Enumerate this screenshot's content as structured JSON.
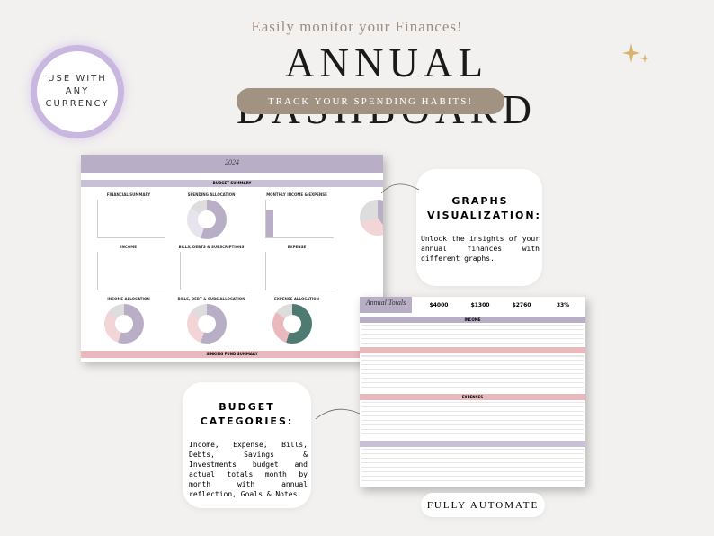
{
  "header": {
    "tagline": "Easily monitor your Finances!",
    "title": "ANNUAL DASHBOARD",
    "button": "TRACK YOUR SPENDING HABITS!"
  },
  "badge": {
    "lines": [
      "USE WITH",
      "ANY",
      "CURRENCY"
    ]
  },
  "dashboard": {
    "year": "2024",
    "summary": "BUDGET SUMMARY",
    "panels": [
      "FINANCIAL SUMMARY",
      "SPENDING ALLOCATION",
      "MONTHLY INCOME & EXPENSE",
      "INCOME",
      "BILLS, DEBTS & SUBSCRIPTIONS",
      "EXPENSE",
      "INCOME ALLOCATION",
      "BILLS, DEBT & SUBS ALLOCATION",
      "EXPENSE ALLOCATION"
    ],
    "sinking": "SINKING FUND SUMMARY"
  },
  "annual_totals": {
    "title": "Annual Totals",
    "stats": [
      "$4000",
      "$1300",
      "$2760",
      "33%"
    ],
    "sections": [
      "INCOME",
      "EXPENSES"
    ]
  },
  "callouts": [
    {
      "title": "GRAPHS VISUALIZATION:",
      "text": "Unlock the insights of your annual finances with different graphs."
    },
    {
      "title": "BUDGET CATEGORIES:",
      "text": "Income, Expense, Bills, Debts, Savings & Investments budget and actual totals month by month with annual reflection, Goals & Notes."
    }
  ],
  "footer": "FULLY AUTOMATE"
}
